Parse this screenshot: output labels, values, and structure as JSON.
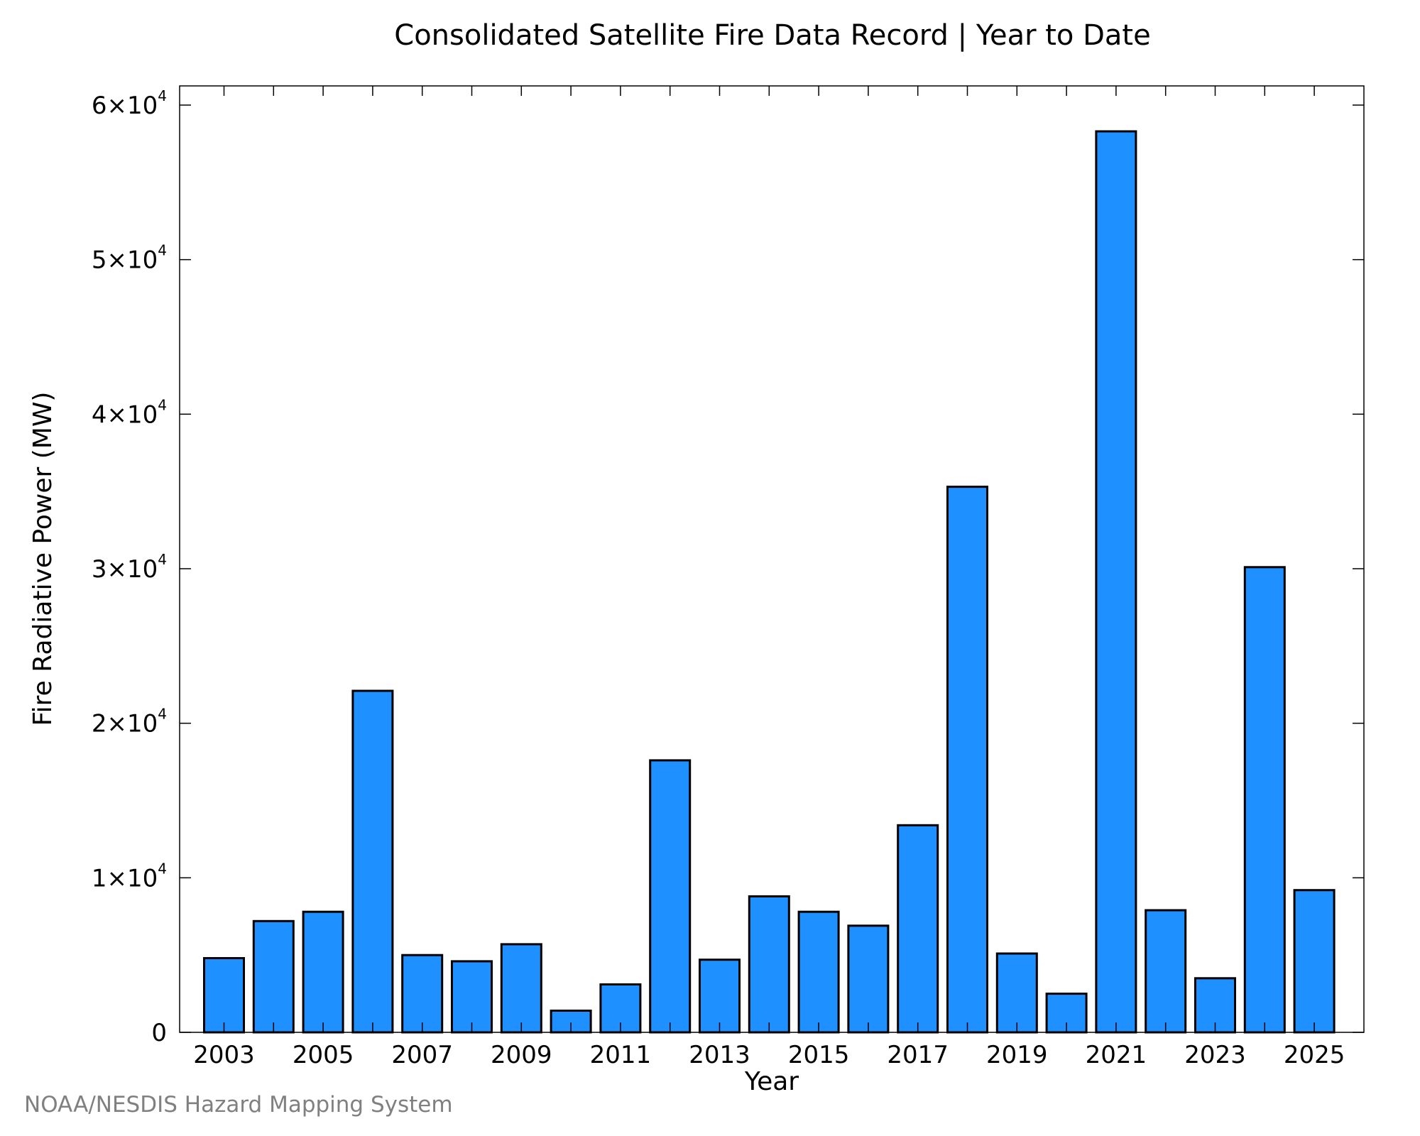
{
  "chart_data": {
    "type": "bar",
    "title": "Consolidated Satellite Fire Data Record | Year to Date",
    "xlabel": "Year",
    "ylabel": "Fire Radiative Power (MW)",
    "categories": [
      "2003",
      "2004",
      "2005",
      "2006",
      "2007",
      "2008",
      "2009",
      "2010",
      "2011",
      "2012",
      "2013",
      "2014",
      "2015",
      "2016",
      "2017",
      "2018",
      "2019",
      "2020",
      "2021",
      "2022",
      "2023",
      "2024",
      "2025"
    ],
    "values": [
      4800,
      7200,
      7800,
      22100,
      5000,
      4600,
      5700,
      1400,
      3100,
      17600,
      4700,
      8800,
      7800,
      6900,
      13400,
      35300,
      5100,
      2500,
      58300,
      7900,
      3500,
      30100,
      9200
    ],
    "ylim": [
      0,
      61200
    ],
    "yticks": [
      {
        "value": 0,
        "mantissa": "0",
        "exp": ""
      },
      {
        "value": 10000,
        "mantissa": "1×10",
        "exp": "4"
      },
      {
        "value": 20000,
        "mantissa": "2×10",
        "exp": "4"
      },
      {
        "value": 30000,
        "mantissa": "3×10",
        "exp": "4"
      },
      {
        "value": 40000,
        "mantissa": "4×10",
        "exp": "4"
      },
      {
        "value": 50000,
        "mantissa": "5×10",
        "exp": "4"
      },
      {
        "value": 60000,
        "mantissa": "6×10",
        "exp": "4"
      }
    ],
    "xtick_labels": [
      "2003",
      "2005",
      "2007",
      "2009",
      "2011",
      "2013",
      "2015",
      "2017",
      "2019",
      "2021",
      "2023",
      "2025"
    ],
    "bar_color": "#1e90ff",
    "bar_edge_color": "#000000",
    "grid": false,
    "legend": "none"
  },
  "credit": "NOAA/NESDIS Hazard Mapping System"
}
